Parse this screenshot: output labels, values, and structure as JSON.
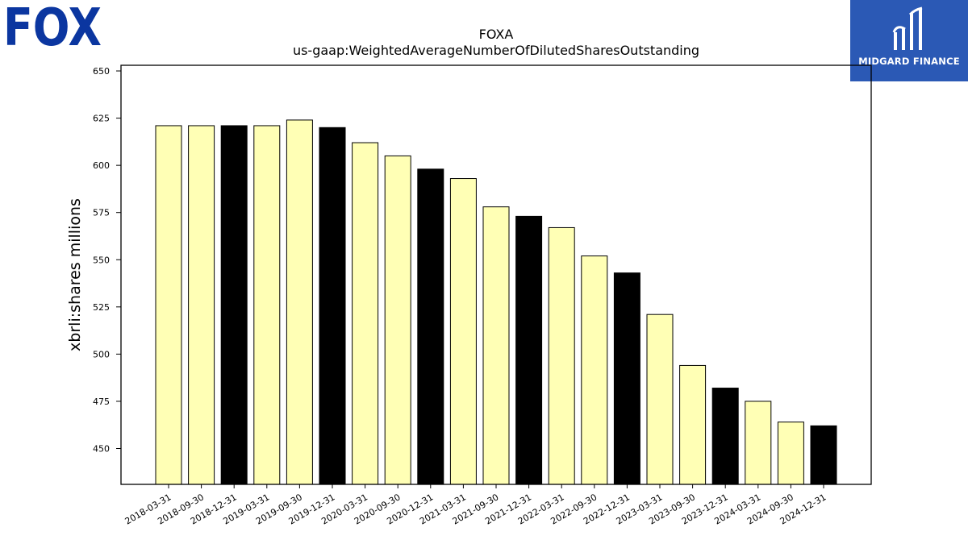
{
  "logos": {
    "left": {
      "text": "FOX",
      "color": "#0b36a0"
    },
    "right": {
      "text": "MIDGARD FINANCE",
      "background": "#2b59b5"
    }
  },
  "chart_data": {
    "type": "bar",
    "title": "FOXA",
    "subtitle": "us-gaap:WeightedAverageNumberOfDilutedSharesOutstanding",
    "xlabel": "",
    "ylabel": "xbrli:shares millions",
    "ylim": [
      431,
      653
    ],
    "yticks": [
      450,
      475,
      500,
      525,
      550,
      575,
      600,
      625,
      650
    ],
    "grid": false,
    "categories": [
      "2018-03-31",
      "2018-09-30",
      "2018-12-31",
      "2019-03-31",
      "2019-09-30",
      "2019-12-31",
      "2020-03-31",
      "2020-09-30",
      "2020-12-31",
      "2021-03-31",
      "2021-09-30",
      "2021-12-31",
      "2022-03-31",
      "2022-09-30",
      "2022-12-31",
      "2023-03-31",
      "2023-09-30",
      "2023-12-31",
      "2024-03-31",
      "2024-09-30",
      "2024-12-31"
    ],
    "values": [
      621,
      621,
      621,
      621,
      624,
      620,
      612,
      605,
      598,
      593,
      578,
      573,
      567,
      552,
      543,
      521,
      494,
      482,
      475,
      464,
      462
    ],
    "colors": [
      "#ffffb5",
      "#ffffb5",
      "#000000",
      "#ffffb5",
      "#ffffb5",
      "#000000",
      "#ffffb5",
      "#ffffb5",
      "#000000",
      "#ffffb5",
      "#ffffb5",
      "#000000",
      "#ffffb5",
      "#ffffb5",
      "#000000",
      "#ffffb5",
      "#ffffb5",
      "#000000",
      "#ffffb5",
      "#ffffb5",
      "#000000"
    ]
  }
}
